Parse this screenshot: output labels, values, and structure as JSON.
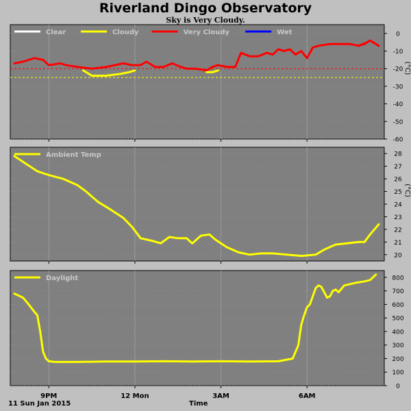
{
  "page": {
    "title": "Riverland Dingo Observatory",
    "subtitle": "Sky is Very Cloudy.",
    "date_label": "11 Sun Jan 2015",
    "x_axis_title": "Time"
  },
  "colors": {
    "background": "#c0c0c0",
    "plot_bg": "#808080",
    "grid": "#9a9a9a",
    "clear": "#ffffff",
    "cloudy": "#ffff00",
    "very_cloudy": "#ff0000",
    "wet": "#0000ff",
    "legend_text": "#c8c8c8"
  },
  "chart_data": [
    {
      "type": "line",
      "panel": "sky",
      "ylabel": "(°C)",
      "ylim": [
        -60,
        5
      ],
      "yticks": [
        0,
        -10,
        -20,
        -30,
        -40,
        -50,
        -60
      ],
      "xlim": [
        19.8,
        7.9
      ],
      "xticks": [
        {
          "t": 21,
          "label": "9PM"
        },
        {
          "t": 24,
          "label": "12 Mon"
        },
        {
          "t": 27,
          "label": "3AM"
        },
        {
          "t": 30,
          "label": "6AM"
        }
      ],
      "grid": true,
      "legend_position": "top-left",
      "legend": [
        {
          "name": "Clear",
          "color": "#ffffff"
        },
        {
          "name": "Cloudy",
          "color": "#ffff00"
        },
        {
          "name": "Very Cloudy",
          "color": "#ff0000"
        },
        {
          "name": "Wet",
          "color": "#0000ff"
        }
      ],
      "thresholds": [
        {
          "value": -20,
          "color": "#ff0000"
        },
        {
          "value": -25,
          "color": "#ffff00"
        }
      ],
      "series": [
        {
          "name": "Very Cloudy",
          "color": "#ff0000",
          "x": [
            19.8,
            20.1,
            20.5,
            20.8,
            21.0,
            21.4,
            21.6,
            22.0,
            22.5,
            23.0,
            23.3,
            23.6,
            23.9,
            24.2,
            24.4,
            24.7,
            25.0,
            25.3,
            25.6,
            25.8,
            26.1,
            26.5,
            26.7,
            26.9,
            27.2,
            27.5,
            27.7,
            28.0,
            28.3,
            28.6,
            28.8,
            29.0,
            29.2,
            29.4,
            29.6,
            29.8,
            30.0,
            30.2,
            30.4,
            30.8,
            31.2,
            31.5,
            31.8,
            32.1
          ],
          "y": [
            -17,
            -16,
            -14,
            -15,
            -18,
            -17,
            -18,
            -19,
            -20,
            -19,
            -18,
            -17,
            -18,
            -18,
            -16,
            -19,
            -19,
            -17,
            -19,
            -20,
            -20,
            -21,
            -19,
            -18,
            -19,
            -19,
            -11,
            -13,
            -13,
            -11,
            -12,
            -9,
            -10,
            -9,
            -12,
            -10,
            -14,
            -8,
            -7,
            -6,
            -6,
            -6,
            -7,
            -5
          ]
        },
        {
          "name": "Cloudy",
          "color": "#ffff00",
          "x": [
            22.2,
            22.5,
            23.0,
            23.5,
            23.8,
            24.0
          ],
          "y": [
            -21,
            -24,
            -24,
            -23,
            -22,
            -21
          ]
        },
        {
          "name": "Cloudy",
          "color": "#ffff00",
          "x": [
            26.5,
            26.7,
            26.9
          ],
          "y": [
            -22,
            -22,
            -21
          ]
        },
        {
          "name": "Very Cloudy",
          "color": "#ff0000",
          "x": [
            31.8,
            32.0,
            32.2,
            32.3,
            32.5
          ],
          "y": [
            -7,
            -6,
            -4,
            -5,
            -7
          ]
        }
      ]
    },
    {
      "type": "line",
      "panel": "ambient",
      "ylabel": "(°C)",
      "ylim": [
        19.5,
        28.5
      ],
      "yticks": [
        20,
        21,
        22,
        23,
        24,
        25,
        26,
        27,
        28
      ],
      "xlim": [
        19.8,
        7.9
      ],
      "xticks": [
        {
          "t": 21,
          "label": "9PM"
        },
        {
          "t": 24,
          "label": "12 Mon"
        },
        {
          "t": 27,
          "label": "3AM"
        },
        {
          "t": 30,
          "label": "6AM"
        }
      ],
      "grid": true,
      "legend_position": "top-left",
      "legend": [
        {
          "name": "Ambient Temp",
          "color": "#ffff00"
        }
      ],
      "series": [
        {
          "name": "Ambient Temp",
          "color": "#ffff00",
          "x": [
            19.8,
            20.2,
            20.6,
            21.0,
            21.5,
            22.0,
            22.3,
            22.7,
            23.2,
            23.6,
            23.9,
            24.2,
            24.6,
            24.9,
            25.2,
            25.5,
            25.8,
            26.0,
            26.3,
            26.6,
            26.8,
            27.2,
            27.6,
            28.0,
            28.4,
            28.8,
            29.3,
            29.8,
            30.3,
            30.6,
            31.0,
            31.4,
            31.8,
            32.0,
            32.2,
            32.5
          ],
          "y": [
            27.8,
            27.2,
            26.6,
            26.3,
            26.0,
            25.5,
            25.0,
            24.2,
            23.5,
            22.9,
            22.2,
            21.3,
            21.1,
            20.9,
            21.4,
            21.3,
            21.3,
            20.9,
            21.5,
            21.6,
            21.2,
            20.6,
            20.2,
            20.0,
            20.1,
            20.1,
            20.0,
            19.9,
            20.0,
            20.4,
            20.8,
            20.9,
            21.0,
            21.0,
            21.6,
            22.4
          ]
        }
      ]
    },
    {
      "type": "line",
      "panel": "daylight",
      "ylabel": "",
      "ylim": [
        0,
        850
      ],
      "yticks": [
        0,
        100,
        200,
        300,
        400,
        500,
        600,
        700,
        800
      ],
      "xlim": [
        19.8,
        7.9
      ],
      "xticks": [
        {
          "t": 21,
          "label": "9PM"
        },
        {
          "t": 24,
          "label": "12 Mon"
        },
        {
          "t": 27,
          "label": "3AM"
        },
        {
          "t": 30,
          "label": "6AM"
        }
      ],
      "grid": true,
      "legend_position": "top-left",
      "legend": [
        {
          "name": "Daylight",
          "color": "#ffff00"
        }
      ],
      "series": [
        {
          "name": "Daylight",
          "color": "#ffff00",
          "x": [
            19.8,
            20.1,
            20.3,
            20.5,
            20.6,
            20.7,
            20.8,
            20.9,
            21.0,
            21.2,
            22.0,
            23.0,
            24.0,
            25.0,
            26.0,
            27.0,
            28.0,
            29.0,
            29.5,
            29.7,
            29.8,
            29.9,
            30.0,
            30.1,
            30.3,
            30.4,
            30.5,
            30.7,
            30.8,
            30.9,
            31.0,
            31.1,
            31.3,
            31.5,
            31.7,
            32.0,
            32.2,
            32.4
          ],
          "y": [
            680,
            650,
            600,
            545,
            520,
            400,
            250,
            200,
            180,
            175,
            175,
            178,
            178,
            180,
            178,
            180,
            178,
            180,
            200,
            300,
            450,
            520,
            580,
            600,
            720,
            740,
            730,
            650,
            660,
            700,
            710,
            690,
            740,
            750,
            760,
            770,
            780,
            820
          ]
        }
      ]
    }
  ]
}
